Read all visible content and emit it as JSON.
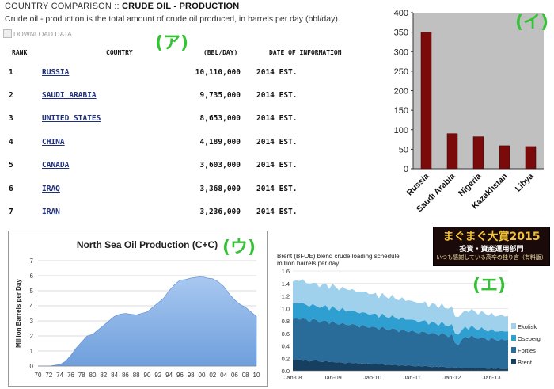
{
  "labels": {
    "a": "(ア)",
    "i": "(イ)",
    "u": "(ウ)",
    "e": "(エ)"
  },
  "comparison": {
    "title_prefix": "COUNTRY COMPARISON :: ",
    "title_bold": "CRUDE OIL - PRODUCTION",
    "description": "Crude oil - production is the total amount of crude oil produced, in barrels per day (bbl/day).",
    "download": "DOWNLOAD DATA",
    "headers": {
      "rank": "RANK",
      "country": "COUNTRY",
      "value": "(BBL/DAY)",
      "date": "DATE OF INFORMATION"
    },
    "rows": [
      {
        "rank": "1",
        "country": "RUSSIA",
        "value": "10,110,000",
        "date": "2014 EST."
      },
      {
        "rank": "2",
        "country": "SAUDI ARABIA",
        "value": "9,735,000",
        "date": "2014 EST."
      },
      {
        "rank": "3",
        "country": "UNITED STATES",
        "value": "8,653,000",
        "date": "2014 EST."
      },
      {
        "rank": "4",
        "country": "CHINA",
        "value": "4,189,000",
        "date": "2014 EST."
      },
      {
        "rank": "5",
        "country": "CANADA",
        "value": "3,603,000",
        "date": "2014 EST."
      },
      {
        "rank": "6",
        "country": "IRAQ",
        "value": "3,368,000",
        "date": "2014 EST."
      },
      {
        "rank": "7",
        "country": "IRAN",
        "value": "3,236,000",
        "date": "2014 EST."
      }
    ]
  },
  "banner": {
    "line1": "まぐまぐ大賞2015",
    "line2": "投資・資産運用部門",
    "line3": "いつも感謝している高卒の独り言（有料版）"
  },
  "chart_data": [
    {
      "type": "bar",
      "categories": [
        "Russia",
        "Saudi Arabia",
        "Nigeria",
        "Kazakhstan",
        "Libya"
      ],
      "values": [
        350,
        90,
        82,
        59,
        57
      ],
      "ylim": [
        0,
        400
      ],
      "yticks": [
        0,
        50,
        100,
        150,
        200,
        250,
        300,
        350,
        400
      ],
      "bar_color": "#7b0a0a",
      "grid": false,
      "background": "#c0c0c0"
    },
    {
      "type": "area",
      "title": "North Sea Oil Production (C+C)",
      "ylabel": "Million Barrels per Day",
      "ylim": [
        0,
        7
      ],
      "yticks": [
        0,
        1,
        2,
        3,
        4,
        5,
        6,
        7
      ],
      "xticks": [
        "70",
        "72",
        "74",
        "76",
        "78",
        "80",
        "82",
        "84",
        "86",
        "88",
        "90",
        "92",
        "94",
        "96",
        "98",
        "00",
        "02",
        "04",
        "06",
        "08",
        "10"
      ],
      "x": [
        1970,
        1971,
        1972,
        1973,
        1974,
        1975,
        1976,
        1977,
        1978,
        1979,
        1980,
        1981,
        1982,
        1983,
        1984,
        1985,
        1986,
        1987,
        1988,
        1989,
        1990,
        1991,
        1992,
        1993,
        1994,
        1995,
        1996,
        1997,
        1998,
        1999,
        2000,
        2001,
        2002,
        2003,
        2004,
        2005,
        2006,
        2007,
        2008,
        2009,
        2010
      ],
      "values": [
        0.0,
        0.0,
        0.0,
        0.05,
        0.1,
        0.3,
        0.7,
        1.2,
        1.6,
        2.0,
        2.1,
        2.4,
        2.7,
        3.0,
        3.3,
        3.45,
        3.5,
        3.45,
        3.4,
        3.5,
        3.6,
        3.9,
        4.2,
        4.5,
        5.0,
        5.4,
        5.7,
        5.75,
        5.85,
        5.9,
        5.95,
        5.85,
        5.8,
        5.6,
        5.3,
        4.8,
        4.4,
        4.1,
        3.9,
        3.6,
        3.3
      ],
      "fill_color": "#6f9fdc",
      "grid": true
    },
    {
      "type": "area",
      "title": "Brent (BFOE) blend crude loading schedule",
      "subtitle": "million barrels per day",
      "ylim": [
        0,
        1.6
      ],
      "yticks": [
        "0.0",
        "0.2",
        "0.4",
        "0.6",
        "0.8",
        "1.0",
        "1.2",
        "1.4",
        "1.6"
      ],
      "xticks": [
        "Jan-08",
        "Jan-09",
        "Jan-10",
        "Jan-11",
        "Jan-12",
        "Jan-13"
      ],
      "x_start": "2008-01",
      "x_step_months": 1,
      "legend_position": "right",
      "series": [
        {
          "name": "Ekofisk",
          "color": "#9fd0ec",
          "values": [
            0.35,
            0.37,
            0.36,
            0.38,
            0.35,
            0.36,
            0.34,
            0.37,
            0.33,
            0.36,
            0.35,
            0.34,
            0.36,
            0.35,
            0.33,
            0.34,
            0.36,
            0.33,
            0.34,
            0.32,
            0.35,
            0.33,
            0.34,
            0.33,
            0.32,
            0.33,
            0.31,
            0.33,
            0.32,
            0.31,
            0.33,
            0.3,
            0.31,
            0.32,
            0.3,
            0.31,
            0.3,
            0.29,
            0.31,
            0.29,
            0.3,
            0.28,
            0.29,
            0.3,
            0.28,
            0.29,
            0.27,
            0.28,
            0.29,
            0.27,
            0.28,
            0.27,
            0.26,
            0.28,
            0.26,
            0.27,
            0.25,
            0.26,
            0.27,
            0.25,
            0.26,
            0.24,
            0.25,
            0.26,
            0.24,
            0.25
          ]
        },
        {
          "name": "Oseberg",
          "color": "#2f9fd2",
          "values": [
            0.25,
            0.24,
            0.26,
            0.25,
            0.23,
            0.25,
            0.24,
            0.22,
            0.24,
            0.23,
            0.25,
            0.22,
            0.24,
            0.23,
            0.22,
            0.24,
            0.21,
            0.23,
            0.22,
            0.21,
            0.23,
            0.2,
            0.22,
            0.21,
            0.2,
            0.22,
            0.19,
            0.21,
            0.2,
            0.19,
            0.21,
            0.18,
            0.2,
            0.19,
            0.18,
            0.2,
            0.17,
            0.19,
            0.18,
            0.17,
            0.19,
            0.16,
            0.18,
            0.17,
            0.16,
            0.18,
            0.15,
            0.17,
            0.16,
            0.15,
            0.17,
            0.15,
            0.16,
            0.14,
            0.16,
            0.15,
            0.14,
            0.16,
            0.13,
            0.15,
            0.14,
            0.13,
            0.15,
            0.13,
            0.14,
            0.13
          ]
        },
        {
          "name": "Forties",
          "color": "#2a6c99",
          "values": [
            0.65,
            0.67,
            0.64,
            0.68,
            0.66,
            0.63,
            0.67,
            0.65,
            0.62,
            0.66,
            0.64,
            0.61,
            0.65,
            0.63,
            0.6,
            0.64,
            0.62,
            0.59,
            0.63,
            0.61,
            0.58,
            0.62,
            0.6,
            0.57,
            0.61,
            0.59,
            0.56,
            0.6,
            0.58,
            0.55,
            0.59,
            0.57,
            0.54,
            0.58,
            0.56,
            0.53,
            0.57,
            0.55,
            0.52,
            0.56,
            0.54,
            0.51,
            0.55,
            0.53,
            0.5,
            0.54,
            0.52,
            0.49,
            0.53,
            0.4,
            0.35,
            0.45,
            0.5,
            0.48,
            0.52,
            0.49,
            0.46,
            0.5,
            0.48,
            0.45,
            0.49,
            0.47,
            0.44,
            0.48,
            0.46,
            0.47
          ]
        },
        {
          "name": "Brent",
          "color": "#173f5f",
          "values": [
            0.18,
            0.17,
            0.18,
            0.16,
            0.17,
            0.15,
            0.16,
            0.17,
            0.15,
            0.14,
            0.16,
            0.14,
            0.15,
            0.13,
            0.14,
            0.13,
            0.12,
            0.14,
            0.12,
            0.13,
            0.11,
            0.12,
            0.11,
            0.12,
            0.1,
            0.11,
            0.1,
            0.11,
            0.09,
            0.1,
            0.09,
            0.1,
            0.08,
            0.09,
            0.08,
            0.09,
            0.08,
            0.07,
            0.08,
            0.07,
            0.08,
            0.07,
            0.06,
            0.07,
            0.06,
            0.07,
            0.06,
            0.05,
            0.06,
            0.05,
            0.06,
            0.05,
            0.05,
            0.04,
            0.05,
            0.04,
            0.05,
            0.04,
            0.04,
            0.03,
            0.04,
            0.03,
            0.04,
            0.03,
            0.03,
            0.03
          ]
        }
      ]
    }
  ]
}
